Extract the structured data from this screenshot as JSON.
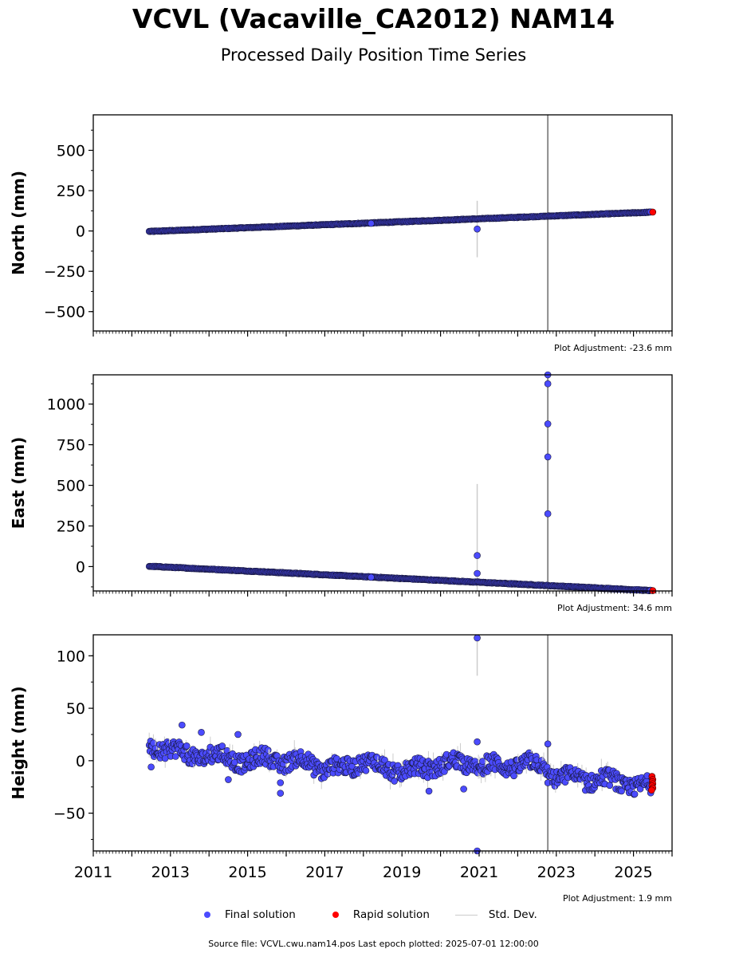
{
  "title": "VCVL (Vacaville_CA2012) NAM14",
  "subtitle": "Processed Daily Position Time Series",
  "legend": {
    "final_label": "Final solution",
    "rapid_label": "Rapid solution",
    "std_label": "Std. Dev."
  },
  "footer": "Source file: VCVL.cwu.nam14.pos  Last epoch plotted: 2025-07-01 12:00:00",
  "colors": {
    "final": "#4b4bff",
    "rapid": "#ff0000",
    "std": "#cccccc",
    "event_line": "#8c8c8c"
  },
  "chart_data": [
    {
      "type": "scatter",
      "ylabel": "North (mm)",
      "adjustment": "Plot Adjustment: -23.6 mm",
      "ylim": [
        -620,
        720
      ],
      "xlim": [
        2011,
        2026
      ],
      "yticks": [
        -500,
        -250,
        0,
        250,
        500
      ],
      "ytick_labels": [
        "−500",
        "−250",
        "0",
        "250",
        "500"
      ],
      "trend": {
        "x": [
          2012.45,
          2025.5
        ],
        "y": [
          -3,
          117
        ]
      },
      "outliers": [
        {
          "x": 2018.2,
          "y": 47
        },
        {
          "x": 2020.95,
          "y": 12,
          "err": 175
        }
      ],
      "event_line_x": 2022.78,
      "rapid": [
        {
          "x": 2025.5,
          "y": 117
        }
      ]
    },
    {
      "type": "scatter",
      "ylabel": "East (mm)",
      "adjustment": "Plot Adjustment: 34.6 mm",
      "ylim": [
        -150,
        1180
      ],
      "xlim": [
        2011,
        2026
      ],
      "yticks": [
        0,
        250,
        500,
        750,
        1000
      ],
      "ytick_labels": [
        "0",
        "250",
        "500",
        "750",
        "1000"
      ],
      "trend": {
        "x": [
          2012.45,
          2025.5
        ],
        "y": [
          2,
          -148
        ]
      },
      "outliers": [
        {
          "x": 2018.2,
          "y": -66
        },
        {
          "x": 2020.95,
          "y": 68,
          "err": 440
        },
        {
          "x": 2020.95,
          "y": -42
        },
        {
          "x": 2022.78,
          "y": 1180
        },
        {
          "x": 2022.78,
          "y": 1125
        },
        {
          "x": 2022.78,
          "y": 878
        },
        {
          "x": 2022.78,
          "y": 675
        },
        {
          "x": 2022.78,
          "y": 325
        }
      ],
      "event_line_x": 2022.78,
      "rapid": [
        {
          "x": 2025.5,
          "y": -148
        }
      ]
    },
    {
      "type": "scatter",
      "ylabel": "Height (mm)",
      "adjustment": "Plot Adjustment: 1.9 mm",
      "ylim": [
        -86,
        120
      ],
      "xlim": [
        2011,
        2026
      ],
      "yticks": [
        -50,
        0,
        50,
        100
      ],
      "ytick_labels": [
        "−50",
        "0",
        "50",
        "100"
      ],
      "xticks": [
        2011,
        2013,
        2015,
        2017,
        2019,
        2021,
        2023,
        2025
      ],
      "xtick_labels": [
        "2011",
        "2013",
        "2015",
        "2017",
        "2019",
        "2021",
        "2023",
        "2025"
      ],
      "trend": {
        "x": [
          2012.45,
          2013.0,
          2013.5,
          2014.0,
          2014.5,
          2015.0,
          2015.5,
          2016.0,
          2016.5,
          2017.0,
          2017.5,
          2018.0,
          2018.5,
          2019.0,
          2019.5,
          2020.0,
          2020.5,
          2021.0,
          2021.5,
          2022.0,
          2022.5,
          2023.0,
          2023.5,
          2024.0,
          2024.5,
          2025.0,
          2025.5
        ],
        "y": [
          10,
          12,
          4,
          5,
          3,
          -2,
          4,
          -3,
          2,
          -10,
          -5,
          -2,
          -4,
          -12,
          -6,
          -5,
          0,
          -7,
          -3,
          -6,
          -1,
          -18,
          -15,
          -20,
          -18,
          -26,
          -24
        ]
      },
      "outliers": [
        {
          "x": 2013.3,
          "y": 34
        },
        {
          "x": 2013.8,
          "y": 27
        },
        {
          "x": 2014.75,
          "y": 25
        },
        {
          "x": 2014.5,
          "y": -18
        },
        {
          "x": 2015.85,
          "y": -21
        },
        {
          "x": 2015.85,
          "y": -31
        },
        {
          "x": 2020.95,
          "y": 117,
          "err": 36
        },
        {
          "x": 2020.95,
          "y": 18
        },
        {
          "x": 2020.95,
          "y": -86
        },
        {
          "x": 2020.6,
          "y": -27
        },
        {
          "x": 2019.7,
          "y": -29
        },
        {
          "x": 2012.5,
          "y": -6
        },
        {
          "x": 2022.78,
          "y": 16
        }
      ],
      "event_line_x": 2022.78,
      "rapid": [
        {
          "x": 2025.48,
          "y": -15
        },
        {
          "x": 2025.5,
          "y": -18
        },
        {
          "x": 2025.49,
          "y": -20
        },
        {
          "x": 2025.5,
          "y": -22
        },
        {
          "x": 2025.48,
          "y": -24
        },
        {
          "x": 2025.5,
          "y": -26
        },
        {
          "x": 2025.47,
          "y": -28
        }
      ]
    }
  ]
}
